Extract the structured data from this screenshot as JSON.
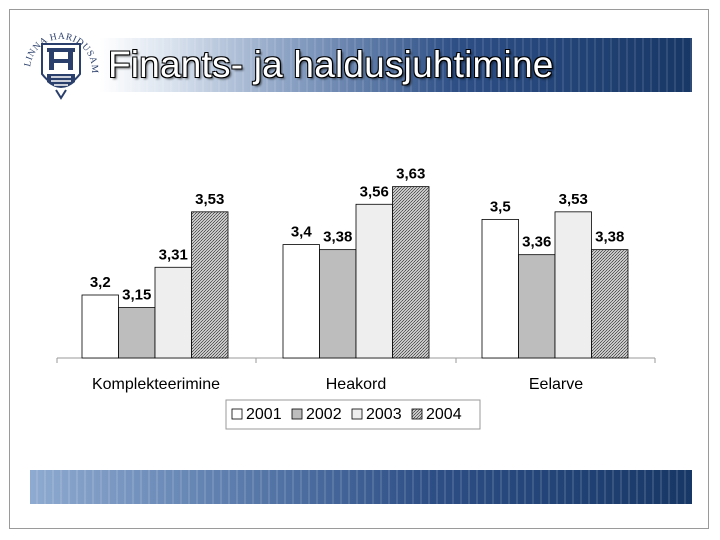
{
  "slide": {
    "title": "Finants- ja haldusjuhtimine",
    "logo_text": "TALLINNA HARIDUSAMET"
  },
  "colors": {
    "series": [
      "#ffffff",
      "#bdbdbd",
      "#eeeeee",
      "#b4b4b4"
    ],
    "title_band_dark": "#173766",
    "frame": "#9a9a9a"
  },
  "chart_data": {
    "type": "bar",
    "categories": [
      "Komplekteerimine",
      "Heakord",
      "Eelarve"
    ],
    "series": [
      {
        "name": "2001",
        "values": [
          3.2,
          3.4,
          3.5
        ],
        "labels": [
          "3,2",
          "3,4",
          "3,5"
        ]
      },
      {
        "name": "2002",
        "values": [
          3.15,
          3.38,
          3.36
        ],
        "labels": [
          "3,15",
          "3,38",
          "3,36"
        ]
      },
      {
        "name": "2003",
        "values": [
          3.31,
          3.56,
          3.53
        ],
        "labels": [
          "3,31",
          "3,56",
          "3,53"
        ]
      },
      {
        "name": "2004",
        "values": [
          3.53,
          3.63,
          3.38
        ],
        "labels": [
          "3,53",
          "3,63",
          "3,38"
        ]
      }
    ],
    "ylim": [
      2.95,
      3.7
    ],
    "grid": false,
    "legend": "bottom",
    "title": "",
    "xlabel": "",
    "ylabel": ""
  }
}
